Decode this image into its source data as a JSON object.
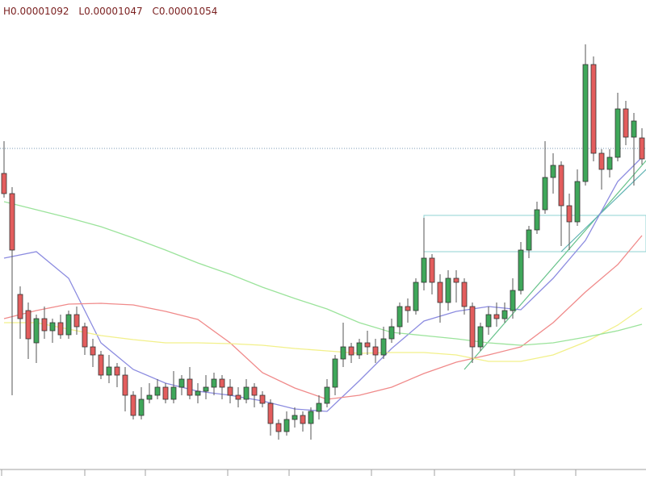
{
  "chart_data": {
    "type": "candlestick",
    "ohlc_labels": [
      "H",
      "L",
      "C"
    ],
    "ylim": [
      6.51e-06,
      1.251e-05
    ],
    "up_color": "#3fa75a",
    "down_color": "#e35d5d",
    "open": [
      1.036e-05,
      1.011e-05,
      8.86e-06,
      8.66e-06,
      8.26e-06,
      8.56e-06,
      8.41e-06,
      8.51e-06,
      8.36e-06,
      8.61e-06,
      8.46e-06,
      8.21e-06,
      8.11e-06,
      7.86e-06,
      7.96e-06,
      7.86e-06,
      7.61e-06,
      7.36e-06,
      7.56e-06,
      7.61e-06,
      7.71e-06,
      7.56e-06,
      7.71e-06,
      7.81e-06,
      7.61e-06,
      7.66e-06,
      7.71e-06,
      7.81e-06,
      7.71e-06,
      7.61e-06,
      7.56e-06,
      7.71e-06,
      7.61e-06,
      7.51e-06,
      7.26e-06,
      7.16e-06,
      7.31e-06,
      7.36e-06,
      7.26e-06,
      7.41e-06,
      7.51e-06,
      7.71e-06,
      8.06e-06,
      8.21e-06,
      8.11e-06,
      8.26e-06,
      8.21e-06,
      8.11e-06,
      8.31e-06,
      8.46e-06,
      8.71e-06,
      8.66e-06,
      9.01e-06,
      9.31e-06,
      9.01e-06,
      8.76e-06,
      9.06e-06,
      9.01e-06,
      8.71e-06,
      8.21e-06,
      8.46e-06,
      8.61e-06,
      8.56e-06,
      8.66e-06,
      8.91e-06,
      9.41e-06,
      9.66e-06,
      9.91e-06,
      1.031e-05,
      1.046e-05,
      9.96e-06,
      9.76e-06,
      1.026e-05,
      1.171e-05,
      1.061e-05,
      1.041e-05,
      1.056e-05,
      1.116e-05,
      1.081e-05,
      1.08e-05
    ],
    "close": [
      1.011e-05,
      9.41e-06,
      8.56e-06,
      8.31e-06,
      8.56e-06,
      8.41e-06,
      8.51e-06,
      8.36e-06,
      8.61e-06,
      8.46e-06,
      8.21e-06,
      8.11e-06,
      7.86e-06,
      7.96e-06,
      7.86e-06,
      7.61e-06,
      7.36e-06,
      7.56e-06,
      7.61e-06,
      7.71e-06,
      7.56e-06,
      7.71e-06,
      7.81e-06,
      7.61e-06,
      7.66e-06,
      7.71e-06,
      7.81e-06,
      7.71e-06,
      7.61e-06,
      7.56e-06,
      7.71e-06,
      7.61e-06,
      7.51e-06,
      7.26e-06,
      7.16e-06,
      7.31e-06,
      7.36e-06,
      7.26e-06,
      7.41e-06,
      7.51e-06,
      7.71e-06,
      8.06e-06,
      8.21e-06,
      8.11e-06,
      8.26e-06,
      8.21e-06,
      8.11e-06,
      8.31e-06,
      8.46e-06,
      8.71e-06,
      8.66e-06,
      9.01e-06,
      9.31e-06,
      9.01e-06,
      8.76e-06,
      9.06e-06,
      9.01e-06,
      8.71e-06,
      8.21e-06,
      8.46e-06,
      8.61e-06,
      8.56e-06,
      8.66e-06,
      8.91e-06,
      9.41e-06,
      9.66e-06,
      9.91e-06,
      1.031e-05,
      1.046e-05,
      9.96e-06,
      9.76e-06,
      1.026e-05,
      1.171e-05,
      1.061e-05,
      1.041e-05,
      1.056e-05,
      1.116e-05,
      1.081e-05,
      1.101e-05,
      1.054e-05
    ],
    "high": [
      1.076e-05,
      1.019e-05,
      8.96e-06,
      8.76e-06,
      8.61e-06,
      8.71e-06,
      8.56e-06,
      8.61e-06,
      8.66e-06,
      8.71e-06,
      8.51e-06,
      8.31e-06,
      8.16e-06,
      8.11e-06,
      8.01e-06,
      7.96e-06,
      7.66e-06,
      7.71e-06,
      7.76e-06,
      7.81e-06,
      7.76e-06,
      7.91e-06,
      7.86e-06,
      7.96e-06,
      7.76e-06,
      7.86e-06,
      7.89e-06,
      7.86e-06,
      7.81e-06,
      7.71e-06,
      7.81e-06,
      7.76e-06,
      7.66e-06,
      7.56e-06,
      7.31e-06,
      7.41e-06,
      7.46e-06,
      7.41e-06,
      7.46e-06,
      7.61e-06,
      7.81e-06,
      8.11e-06,
      8.51e-06,
      8.26e-06,
      8.31e-06,
      8.41e-06,
      8.31e-06,
      8.46e-06,
      8.56e-06,
      8.76e-06,
      8.81e-06,
      9.06e-06,
      9.81e-06,
      9.36e-06,
      9.11e-06,
      9.16e-06,
      9.16e-06,
      9.06e-06,
      8.76e-06,
      8.51e-06,
      8.71e-06,
      8.76e-06,
      8.76e-06,
      9.06e-06,
      9.51e-06,
      9.71e-06,
      1.001e-05,
      1.076e-05,
      1.061e-05,
      1.051e-05,
      1.011e-05,
      1.041e-05,
      1.196e-05,
      1.181e-05,
      1.066e-05,
      1.066e-05,
      1.136e-05,
      1.126e-05,
      1.111e-05,
      1.092e-05
    ],
    "low": [
      1.006e-05,
      7.61e-06,
      8.31e-06,
      8.06e-06,
      8.01e-06,
      8.31e-06,
      8.26e-06,
      8.31e-06,
      8.31e-06,
      8.36e-06,
      8.11e-06,
      7.96e-06,
      7.81e-06,
      7.76e-06,
      7.71e-06,
      7.41e-06,
      7.31e-06,
      7.31e-06,
      7.51e-06,
      7.56e-06,
      7.51e-06,
      7.51e-06,
      7.61e-06,
      7.56e-06,
      7.51e-06,
      7.56e-06,
      7.61e-06,
      7.56e-06,
      7.51e-06,
      7.46e-06,
      7.51e-06,
      7.46e-06,
      7.46e-06,
      7.11e-06,
      7.06e-06,
      7.11e-06,
      7.21e-06,
      7.16e-06,
      7.06e-06,
      7.31e-06,
      7.46e-06,
      7.61e-06,
      7.96e-06,
      8.01e-06,
      8.06e-06,
      8.11e-06,
      8.01e-06,
      8.06e-06,
      8.26e-06,
      8.36e-06,
      8.51e-06,
      8.61e-06,
      8.91e-06,
      8.86e-06,
      8.51e-06,
      8.66e-06,
      8.76e-06,
      8.61e-06,
      8.01e-06,
      8.16e-06,
      8.36e-06,
      8.46e-06,
      8.51e-06,
      8.56e-06,
      8.86e-06,
      9.31e-06,
      9.61e-06,
      9.86e-06,
      1.011e-05,
      9.46e-06,
      9.41e-06,
      9.71e-06,
      1.021e-05,
      1.051e-05,
      1.016e-05,
      1.031e-05,
      1.051e-05,
      1.071e-05,
      1.021e-05,
      1.047e-05
    ],
    "lines": [
      {
        "color": "#8c8ce0",
        "x": [
          0,
          4,
          8,
          12,
          16,
          20,
          24,
          28,
          32,
          36,
          40,
          44,
          48,
          52,
          56,
          60,
          64,
          68,
          72,
          76,
          79
        ],
        "values": [
          9.31e-06,
          9.39e-06,
          9.06e-06,
          8.26e-06,
          7.93e-06,
          7.76e-06,
          7.66e-06,
          7.61e-06,
          7.54e-06,
          7.44e-06,
          7.41e-06,
          7.79e-06,
          8.19e-06,
          8.53e-06,
          8.65e-06,
          8.71e-06,
          8.67e-06,
          9.06e-06,
          9.53e-06,
          1.026e-05,
          1.056e-05
        ]
      },
      {
        "color": "#f08a8a",
        "x": [
          0,
          4,
          8,
          12,
          16,
          20,
          24,
          28,
          32,
          36,
          40,
          44,
          48,
          52,
          56,
          60,
          64,
          68,
          72,
          76,
          79
        ],
        "values": [
          8.56e-06,
          8.66e-06,
          8.74e-06,
          8.75e-06,
          8.73e-06,
          8.65e-06,
          8.55e-06,
          8.26e-06,
          7.89e-06,
          7.7e-06,
          7.56e-06,
          7.61e-06,
          7.71e-06,
          7.88e-06,
          8.02e-06,
          8.11e-06,
          8.21e-06,
          8.51e-06,
          8.89e-06,
          9.23e-06,
          9.59e-06
        ]
      },
      {
        "color": "#f2f08a",
        "x": [
          0,
          4,
          8,
          12,
          16,
          20,
          24,
          28,
          32,
          36,
          40,
          44,
          48,
          52,
          56,
          60,
          64,
          68,
          72,
          76,
          79
        ],
        "values": [
          8.51e-06,
          8.51e-06,
          8.43e-06,
          8.35e-06,
          8.3e-06,
          8.26e-06,
          8.26e-06,
          8.25e-06,
          8.23e-06,
          8.19e-06,
          8.16e-06,
          8.13e-06,
          8.14e-06,
          8.14e-06,
          8.11e-06,
          8.03e-06,
          8.03e-06,
          8.11e-06,
          8.27e-06,
          8.48e-06,
          8.69e-06
        ]
      },
      {
        "color": "#9be39b",
        "x": [
          0,
          4,
          8,
          12,
          16,
          20,
          24,
          28,
          32,
          36,
          40,
          44,
          48,
          52,
          56,
          60,
          64,
          68,
          72,
          76,
          79
        ],
        "values": [
          1.001e-05,
          9.91e-06,
          9.81e-06,
          9.7e-06,
          9.56e-06,
          9.41e-06,
          9.25e-06,
          9.11e-06,
          8.95e-06,
          8.81e-06,
          8.68e-06,
          8.51e-06,
          8.39e-06,
          8.35e-06,
          8.31e-06,
          8.26e-06,
          8.23e-06,
          8.26e-06,
          8.33e-06,
          8.41e-06,
          8.49e-06
        ]
      }
    ],
    "price_line": 1.067e-05,
    "box": {
      "x": [
        52,
        79
      ],
      "top": 9.84e-06,
      "bottom": 9.39e-06,
      "color": "#8fd3d3"
    },
    "trendlines": [
      {
        "x": [
          57,
          79
        ],
        "values": [
          7.93e-06,
          1.046e-05
        ],
        "color": "#66c28a"
      },
      {
        "x": [
          69,
          79
        ],
        "values": [
          9.39e-06,
          1.036e-05
        ],
        "color": "#5fb3b3"
      }
    ]
  }
}
